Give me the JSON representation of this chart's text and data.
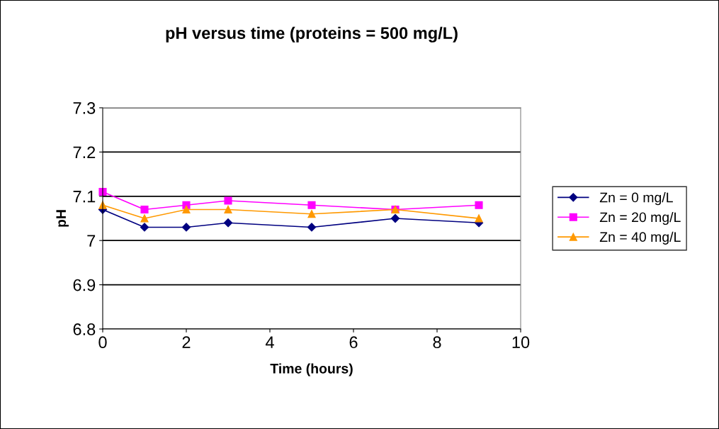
{
  "chart_data": {
    "type": "line",
    "title": "pH versus time (proteins = 500 mg/L)",
    "xlabel": "Time (hours)",
    "ylabel": "pH",
    "x": [
      0,
      1,
      2,
      3,
      5,
      7,
      9
    ],
    "series": [
      {
        "name": "Zn = 0 mg/L",
        "color": "#000080",
        "marker": "diamond",
        "values": [
          7.07,
          7.03,
          7.03,
          7.04,
          7.03,
          7.05,
          7.04
        ]
      },
      {
        "name": "Zn = 20 mg/L",
        "color": "#ff00ff",
        "marker": "square",
        "values": [
          7.11,
          7.07,
          7.08,
          7.09,
          7.08,
          7.07,
          7.08
        ]
      },
      {
        "name": "Zn = 40 mg/L",
        "color": "#ff9900",
        "marker": "triangle",
        "values": [
          7.08,
          7.05,
          7.07,
          7.07,
          7.06,
          7.07,
          7.05
        ]
      }
    ],
    "xlim": [
      0,
      10
    ],
    "xticks": [
      0,
      2,
      4,
      6,
      8,
      10
    ],
    "ylim": [
      6.8,
      7.3
    ],
    "yticks": [
      6.8,
      6.9,
      7,
      7.1,
      7.2,
      7.3
    ],
    "grid": "y",
    "legend": "right"
  }
}
